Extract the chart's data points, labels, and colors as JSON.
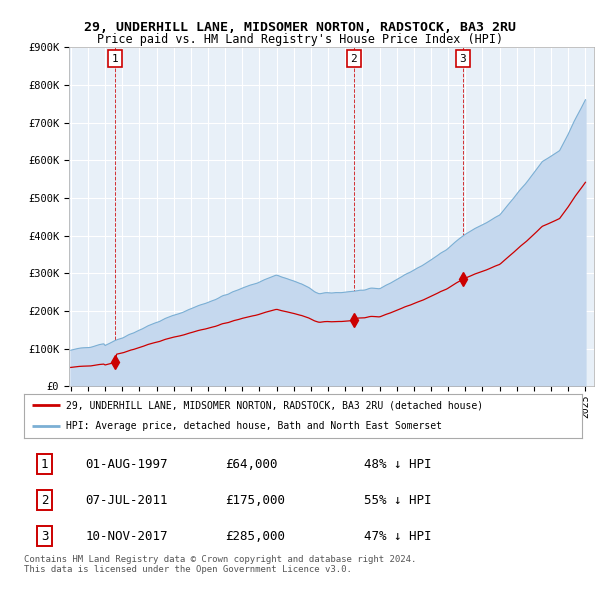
{
  "title_line1": "29, UNDERHILL LANE, MIDSOMER NORTON, RADSTOCK, BA3 2RU",
  "title_line2": "Price paid vs. HM Land Registry's House Price Index (HPI)",
  "ylim": [
    0,
    900000
  ],
  "yticks": [
    0,
    100000,
    200000,
    300000,
    400000,
    500000,
    600000,
    700000,
    800000,
    900000
  ],
  "ytick_labels": [
    "£0",
    "£100K",
    "£200K",
    "£300K",
    "£400K",
    "£500K",
    "£600K",
    "£700K",
    "£800K",
    "£900K"
  ],
  "xlim_start": 1994.9,
  "xlim_end": 2025.5,
  "background_color": "#ffffff",
  "plot_bg_color": "#e8f0f8",
  "grid_color": "#ffffff",
  "sale_color": "#cc0000",
  "hpi_fill_color": "#c5d8ee",
  "hpi_line_color": "#7bafd4",
  "legend_sale_label": "29, UNDERHILL LANE, MIDSOMER NORTON, RADSTOCK, BA3 2RU (detached house)",
  "legend_hpi_label": "HPI: Average price, detached house, Bath and North East Somerset",
  "sale_dates": [
    1997.583,
    2011.5,
    2017.86
  ],
  "sale_prices": [
    64000,
    175000,
    285000
  ],
  "sale_labels": [
    "1",
    "2",
    "3"
  ],
  "table_rows": [
    [
      "1",
      "01-AUG-1997",
      "£64,000",
      "48% ↓ HPI"
    ],
    [
      "2",
      "07-JUL-2011",
      "£175,000",
      "55% ↓ HPI"
    ],
    [
      "3",
      "10-NOV-2017",
      "£285,000",
      "47% ↓ HPI"
    ]
  ],
  "footer": "Contains HM Land Registry data © Crown copyright and database right 2024.\nThis data is licensed under the Open Government Licence v3.0.",
  "vline_dates": [
    1997.583,
    2011.5,
    2017.86
  ]
}
